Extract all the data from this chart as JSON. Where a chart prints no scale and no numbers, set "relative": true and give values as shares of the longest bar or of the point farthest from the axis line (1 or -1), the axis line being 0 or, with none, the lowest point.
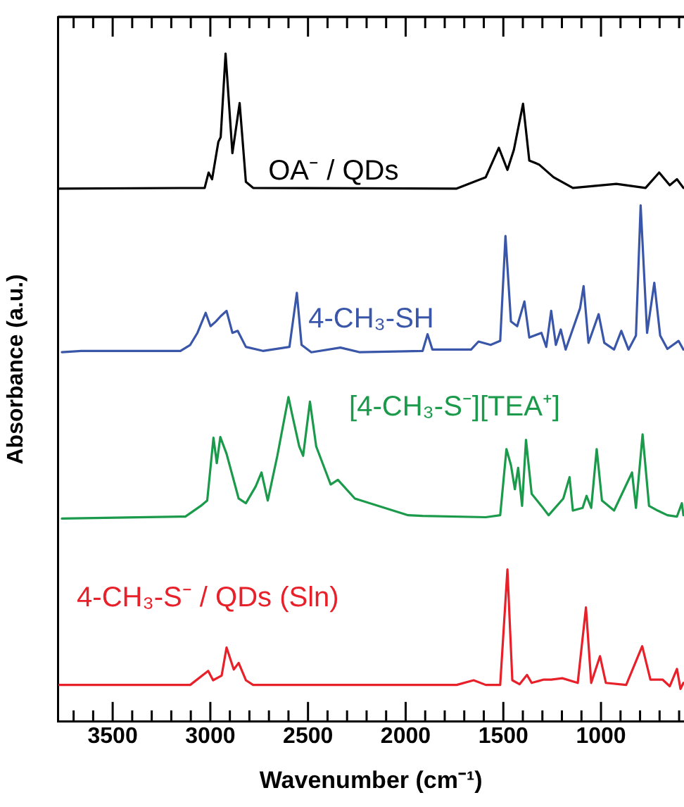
{
  "chart_data": {
    "type": "line",
    "relative": true,
    "xlabel": "Wavenumber (cm⁻¹)",
    "ylabel": "Absorbance (a.u.)",
    "xlim": [
      3780,
      575
    ],
    "xticks": [
      {
        "value": 3700,
        "label": null
      },
      {
        "value": 3600,
        "label": null
      },
      3500,
      {
        "value": 3400,
        "label": null
      },
      {
        "value": 3300,
        "label": null
      },
      {
        "value": 3200,
        "label": null
      },
      {
        "value": 3100,
        "label": null
      },
      3000,
      {
        "value": 2900,
        "label": null
      },
      {
        "value": 2800,
        "label": null
      },
      {
        "value": 2700,
        "label": null
      },
      {
        "value": 2600,
        "label": null
      },
      2500,
      {
        "value": 2400,
        "label": null
      },
      {
        "value": 2300,
        "label": null
      },
      {
        "value": 2200,
        "label": null
      },
      {
        "value": 2100,
        "label": null
      },
      2000,
      {
        "value": 1900,
        "label": null
      },
      {
        "value": 1800,
        "label": null
      },
      {
        "value": 1700,
        "label": null
      },
      {
        "value": 1600,
        "label": null
      },
      1500,
      {
        "value": 1400,
        "label": null
      },
      {
        "value": 1300,
        "label": null
      },
      {
        "value": 1200,
        "label": null
      },
      {
        "value": 1100,
        "label": null
      },
      1000,
      {
        "value": 900,
        "label": null
      },
      {
        "value": 800,
        "label": null
      },
      {
        "value": 700,
        "label": null
      },
      {
        "value": 600,
        "label": null
      }
    ],
    "grid": false,
    "legend": false,
    "marker": "none",
    "line_style": "solid",
    "series": [
      {
        "name": "OA⁻ / QDs",
        "color": "#000000",
        "x": [
          3773,
          3029,
          3009,
          2991,
          2959,
          2947,
          2922,
          2887,
          2850,
          2818,
          2781,
          1739,
          1590,
          1523,
          1479,
          1446,
          1399,
          1367,
          1317,
          1243,
          1144,
          921,
          772,
          702,
          648,
          611,
          578
        ],
        "values": [
          0.798,
          0.799,
          0.822,
          0.812,
          0.868,
          0.875,
          1,
          0.851,
          0.926,
          0.808,
          0.799,
          0.798,
          0.815,
          0.859,
          0.826,
          0.856,
          0.925,
          0.84,
          0.834,
          0.815,
          0.799,
          0.805,
          0.799,
          0.822,
          0.803,
          0.812,
          0.799
        ]
      },
      {
        "name": "4-CH₃-SH",
        "color": "#3a56a8",
        "x": [
          3760,
          3661,
          3153,
          3103,
          3066,
          3024,
          2999,
          2972,
          2947,
          2917,
          2887,
          2860,
          2818,
          2731,
          2595,
          2557,
          2533,
          2483,
          2334,
          2235,
          1913,
          1888,
          1863,
          1665,
          1627,
          1565,
          1516,
          1489,
          1461,
          1429,
          1392,
          1367,
          1305,
          1280,
          1255,
          1231,
          1206,
          1181,
          1107,
          1089,
          1064,
          1012,
          983,
          933,
          896,
          859,
          821,
          797,
          764,
          727,
          697,
          660,
          603,
          578
        ],
        "values": [
          0.553,
          0.555,
          0.555,
          0.564,
          0.582,
          0.612,
          0.592,
          0.599,
          0.607,
          0.615,
          0.582,
          0.585,
          0.561,
          0.555,
          0.561,
          0.642,
          0.564,
          0.553,
          0.56,
          0.553,
          0.555,
          0.58,
          0.557,
          0.557,
          0.569,
          0.564,
          0.57,
          0.727,
          0.599,
          0.592,
          0.629,
          0.575,
          0.582,
          0.561,
          0.615,
          0.564,
          0.587,
          0.557,
          0.619,
          0.652,
          0.567,
          0.61,
          0.567,
          0.557,
          0.585,
          0.557,
          0.578,
          0.773,
          0.582,
          0.657,
          0.578,
          0.558,
          0.57,
          0.557
        ]
      },
      {
        "name": "[4-CH₃-S⁻][TEA⁺]",
        "color": "#1a9a4a",
        "x": [
          3760,
          3128,
          3049,
          3016,
          2984,
          2967,
          2949,
          2917,
          2855,
          2818,
          2768,
          2738,
          2706,
          2657,
          2600,
          2582,
          2545,
          2525,
          2490,
          2458,
          2384,
          2347,
          2260,
          1987,
          1913,
          1590,
          1516,
          1484,
          1461,
          1441,
          1424,
          1404,
          1384,
          1355,
          1305,
          1268,
          1193,
          1161,
          1144,
          1094,
          1074,
          1050,
          1022,
          995,
          933,
          841,
          821,
          787,
          754,
          710,
          660,
          611,
          586,
          578
        ],
        "values": [
          0.304,
          0.307,
          0.323,
          0.331,
          0.425,
          0.387,
          0.426,
          0.401,
          0.334,
          0.327,
          0.352,
          0.373,
          0.331,
          0.398,
          0.486,
          0.461,
          0.412,
          0.398,
          0.479,
          0.412,
          0.355,
          0.362,
          0.334,
          0.309,
          0.308,
          0.306,
          0.309,
          0.408,
          0.384,
          0.348,
          0.38,
          0.323,
          0.422,
          0.341,
          0.323,
          0.309,
          0.334,
          0.366,
          0.316,
          0.32,
          0.338,
          0.32,
          0.408,
          0.331,
          0.316,
          0.373,
          0.32,
          0.43,
          0.323,
          0.316,
          0.309,
          0.307,
          0.327,
          0.309
        ]
      },
      {
        "name": "4-CH₃-S⁻ / QDs (Sln)",
        "color": "#e8202a",
        "x": [
          3773,
          3103,
          3011,
          2986,
          2942,
          2917,
          2880,
          2855,
          2818,
          2781,
          1739,
          1652,
          1590,
          1516,
          1479,
          1454,
          1417,
          1379,
          1355,
          1293,
          1255,
          1198,
          1119,
          1077,
          1050,
          1005,
          975,
          871,
          789,
          747,
          685,
          648,
          611,
          593,
          578
        ],
        "values": [
          0.055,
          0.055,
          0.076,
          0.062,
          0.069,
          0.111,
          0.078,
          0.088,
          0.062,
          0.055,
          0.055,
          0.062,
          0.055,
          0.055,
          0.228,
          0.062,
          0.056,
          0.07,
          0.058,
          0.063,
          0.063,
          0.065,
          0.058,
          0.171,
          0.058,
          0.098,
          0.058,
          0.055,
          0.113,
          0.063,
          0.063,
          0.053,
          0.079,
          0.049,
          0.058
        ]
      }
    ]
  }
}
